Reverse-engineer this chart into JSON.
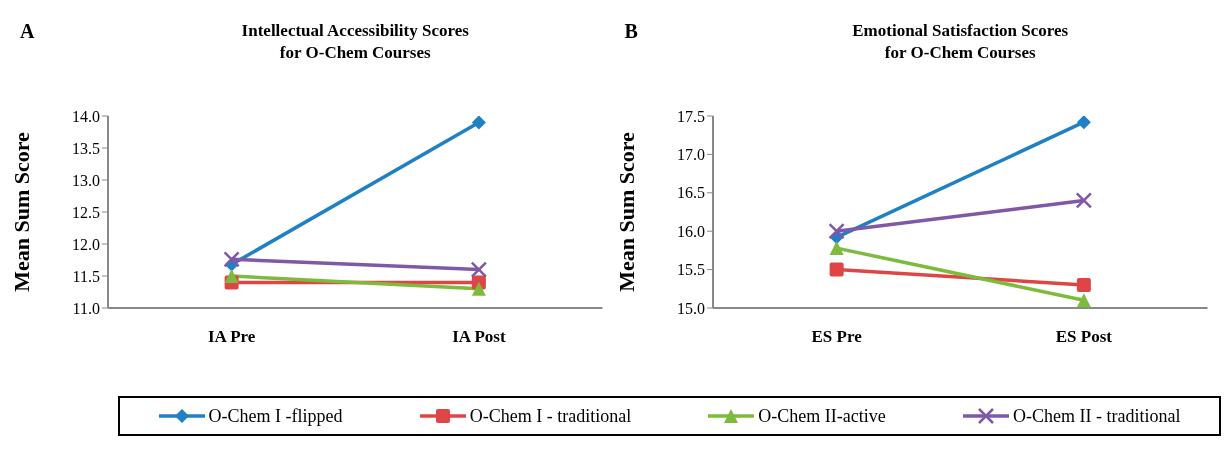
{
  "chart_data": [
    {
      "type": "line",
      "title": "Intellectual Accessibility Scores\nfor O-Chem Courses",
      "ylabel": "Mean Sum Score",
      "annotations": [
        "A"
      ],
      "categories": [
        "IA Pre",
        "IA Post"
      ],
      "series": [
        {
          "name": "O-Chem I -flipped",
          "color": "#1f80c4",
          "marker": "diamond",
          "values": [
            11.68,
            13.9
          ]
        },
        {
          "name": "O-Chem I - traditional",
          "color": "#e04545",
          "marker": "square",
          "values": [
            11.4,
            11.4
          ]
        },
        {
          "name": "O-Chem II-active",
          "color": "#7dbb3c",
          "marker": "triangle",
          "values": [
            11.5,
            11.3
          ]
        },
        {
          "name": "O-Chem II - traditional",
          "color": "#8058a8",
          "marker": "cross",
          "values": [
            11.76,
            11.6
          ]
        }
      ],
      "ylim": [
        11,
        14
      ],
      "yticks": [
        {
          "value": 11,
          "label": "11.0"
        },
        {
          "value": 11.5,
          "label": "11.5"
        },
        {
          "value": 12,
          "label": "12.0"
        },
        {
          "value": 12.5,
          "label": "12.5"
        },
        {
          "value": 13,
          "label": "13.0"
        },
        {
          "value": 13.5,
          "label": "13.5"
        },
        {
          "value": 14,
          "label": "14.0"
        }
      ],
      "grid": false,
      "legend": "bottom"
    },
    {
      "type": "line",
      "title": "Emotional Satisfaction Scores\nfor O-Chem Courses",
      "ylabel": "Mean Sum Score",
      "annotations": [
        "B"
      ],
      "categories": [
        "ES Pre",
        "ES Post"
      ],
      "series": [
        {
          "color": "#1f80c4",
          "marker": "diamond",
          "values": [
            15.92,
            17.42
          ]
        },
        {
          "color": "#e04545",
          "marker": "square",
          "values": [
            15.5,
            15.3
          ]
        },
        {
          "color": "#7dbb3c",
          "marker": "triangle",
          "values": [
            15.78,
            15.1
          ]
        },
        {
          "color": "#8058a8",
          "marker": "cross",
          "values": [
            16.0,
            16.4
          ]
        }
      ],
      "ylim": [
        15,
        17.5
      ],
      "yticks": [
        {
          "value": 15,
          "label": "15.0"
        },
        {
          "value": 15.5,
          "label": "15.5"
        },
        {
          "value": 16,
          "label": "16.0"
        },
        {
          "value": 16.5,
          "label": "16.5"
        },
        {
          "value": 17,
          "label": "17.0"
        },
        {
          "value": 17.5,
          "label": "17.5"
        }
      ],
      "grid": false
    }
  ]
}
